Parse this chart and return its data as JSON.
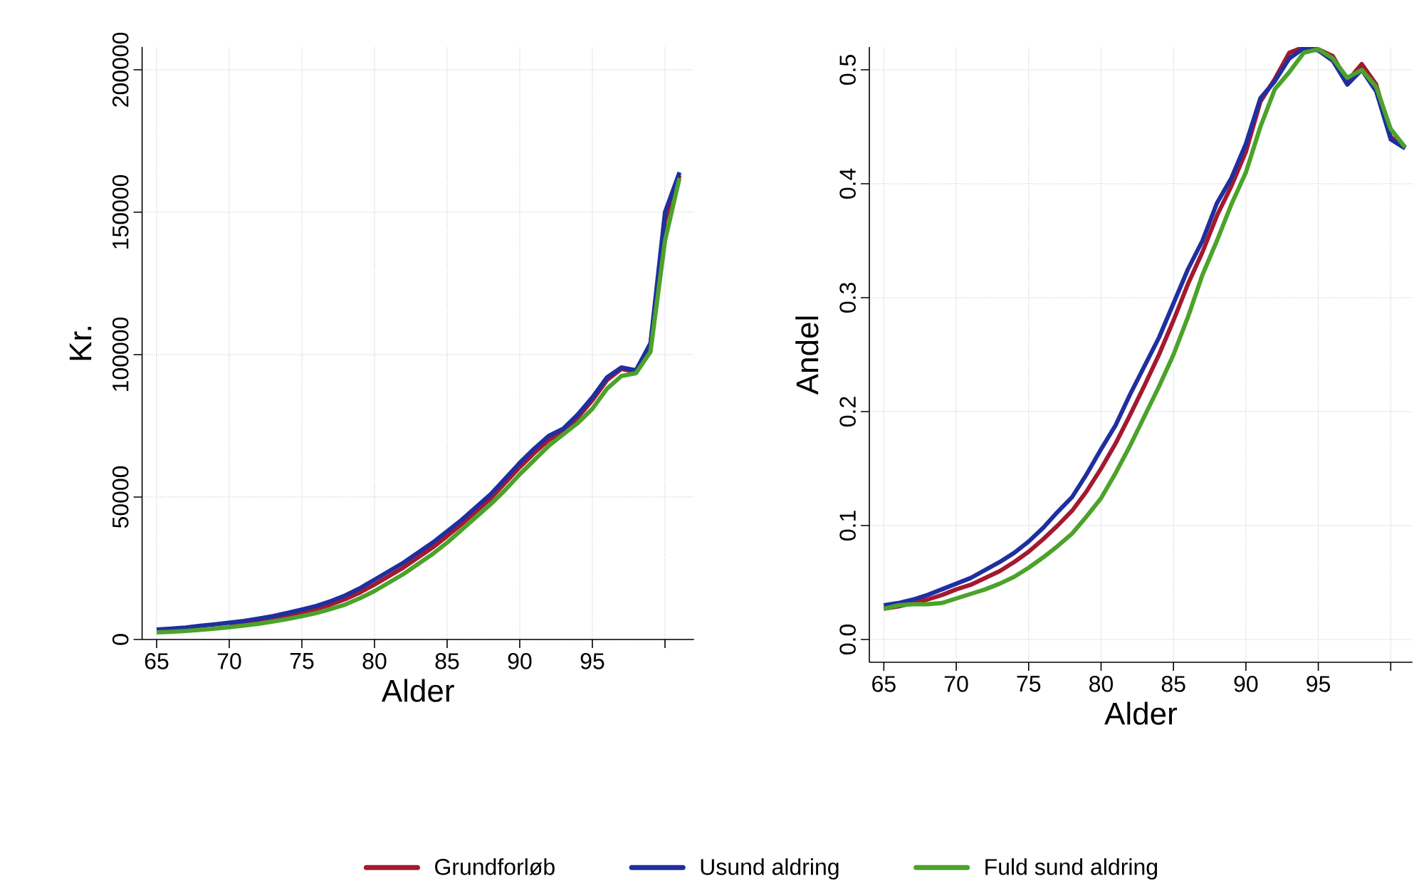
{
  "chart_data": [
    {
      "type": "line",
      "xlabel": "Alder",
      "ylabel": "Kr.",
      "x": [
        65,
        66,
        67,
        68,
        69,
        70,
        71,
        72,
        73,
        74,
        75,
        76,
        77,
        78,
        79,
        80,
        81,
        82,
        83,
        84,
        85,
        86,
        87,
        88,
        89,
        90,
        91,
        92,
        93,
        94,
        95,
        96,
        97,
        98,
        99,
        100,
        101
      ],
      "xlim": [
        64,
        102
      ],
      "ylim": [
        0,
        208000
      ],
      "xticks": [
        65,
        70,
        75,
        80,
        85,
        90,
        95,
        {
          "value": 100,
          "label": null
        }
      ],
      "yticks": [
        0,
        50000,
        100000,
        150000,
        200000
      ],
      "grid": true,
      "legend": "bottom",
      "marker": "none",
      "line_style": "solid",
      "series": [
        {
          "name": "Grundforløb",
          "color": "#a3192f",
          "values": [
            null,
            null,
            null,
            null,
            null,
            5200,
            5800,
            6500,
            7400,
            8400,
            9500,
            10700,
            12300,
            14200,
            16500,
            19300,
            22300,
            25300,
            28800,
            32300,
            36300,
            40500,
            45000,
            49500,
            55000,
            60500,
            65500,
            70000,
            73000,
            78000,
            84000,
            91000,
            95000,
            94000,
            103000,
            147000,
            163000
          ]
        },
        {
          "name": "Usund aldring",
          "color": "#1f2fa0",
          "values": [
            3500,
            3800,
            4200,
            4800,
            5300,
            5900,
            6500,
            7300,
            8200,
            9300,
            10500,
            11800,
            13500,
            15500,
            18000,
            21000,
            24000,
            27000,
            30500,
            34000,
            38000,
            42000,
            46500,
            51000,
            56500,
            62000,
            67000,
            71500,
            74000,
            79000,
            85000,
            92000,
            95500,
            94500,
            104000,
            150000,
            164000
          ]
        },
        {
          "name": "Fuld sund aldring",
          "color": "#4ca22a",
          "values": [
            2500,
            2700,
            3000,
            3400,
            3800,
            4300,
            4900,
            5500,
            6300,
            7200,
            8200,
            9300,
            10700,
            12300,
            14500,
            17000,
            20000,
            23000,
            26500,
            30000,
            34000,
            38500,
            43000,
            47500,
            52500,
            58000,
            63000,
            68000,
            72000,
            76000,
            81000,
            88000,
            92500,
            93500,
            101000,
            140000,
            162000
          ]
        }
      ]
    },
    {
      "type": "line",
      "xlabel": "Alder",
      "ylabel": "Andel",
      "x": [
        65,
        66,
        67,
        68,
        69,
        70,
        71,
        72,
        73,
        74,
        75,
        76,
        77,
        78,
        79,
        80,
        81,
        82,
        83,
        84,
        85,
        86,
        87,
        88,
        89,
        90,
        91,
        92,
        93,
        94,
        95,
        96,
        97,
        98,
        99,
        100,
        101
      ],
      "xlim": [
        64,
        101.5
      ],
      "ylim": [
        -0.02,
        0.52
      ],
      "xticks": [
        65,
        70,
        75,
        80,
        85,
        90,
        95,
        {
          "value": 100,
          "label": null
        }
      ],
      "yticks": [
        {
          "value": 0,
          "label": "0.0"
        },
        0.1,
        0.2,
        0.3,
        0.4,
        0.5
      ],
      "grid": true,
      "marker": "none",
      "line_style": "solid",
      "series": [
        {
          "color": "#a3192f",
          "values": [
            0.027,
            0.029,
            0.032,
            0.035,
            0.039,
            0.044,
            0.048,
            0.054,
            0.06,
            0.068,
            0.077,
            0.088,
            0.1,
            0.113,
            0.13,
            0.15,
            0.172,
            0.197,
            0.223,
            0.25,
            0.28,
            0.312,
            0.34,
            0.372,
            0.398,
            0.428,
            0.472,
            0.492,
            0.515,
            0.52,
            0.518,
            0.512,
            0.49,
            0.505,
            0.487,
            0.441,
            0.432
          ]
        },
        {
          "color": "#1f2fa0",
          "values": [
            0.03,
            0.032,
            0.035,
            0.039,
            0.044,
            0.049,
            0.054,
            0.061,
            0.068,
            0.076,
            0.086,
            0.098,
            0.112,
            0.125,
            0.145,
            0.167,
            0.188,
            0.215,
            0.24,
            0.265,
            0.295,
            0.325,
            0.35,
            0.383,
            0.405,
            0.435,
            0.475,
            0.49,
            0.51,
            0.519,
            0.517,
            0.508,
            0.487,
            0.5,
            0.481,
            0.439,
            0.431
          ]
        },
        {
          "color": "#4ca22a",
          "values": [
            0.027,
            0.03,
            0.031,
            0.031,
            0.032,
            0.036,
            0.04,
            0.044,
            0.049,
            0.055,
            0.063,
            0.072,
            0.082,
            0.093,
            0.108,
            0.124,
            0.146,
            0.17,
            0.196,
            0.222,
            0.25,
            0.283,
            0.32,
            0.35,
            0.382,
            0.41,
            0.45,
            0.483,
            0.498,
            0.515,
            0.518,
            0.51,
            0.493,
            0.5,
            0.485,
            0.448,
            0.432
          ]
        }
      ]
    }
  ]
}
